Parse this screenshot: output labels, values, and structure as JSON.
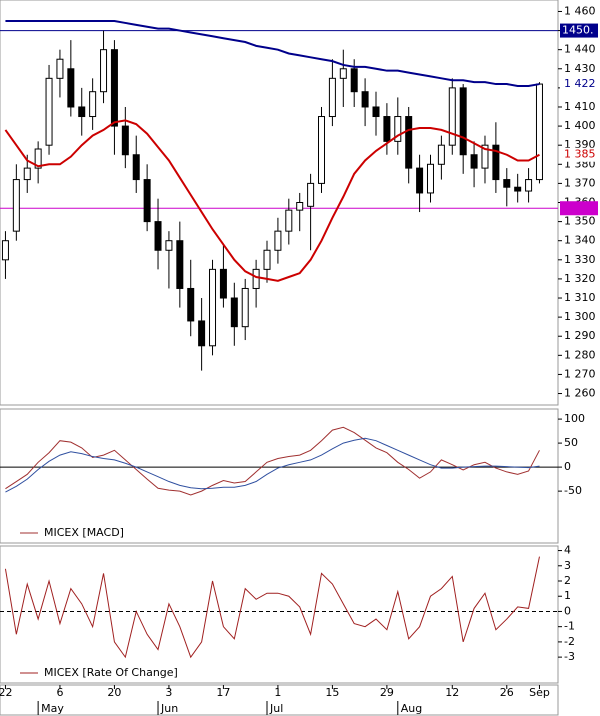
{
  "chart_data": [
    {
      "type": "candlestick",
      "open": [
        1330,
        1345,
        1372,
        1378,
        1390,
        1425,
        1430,
        1410,
        1405,
        1418,
        1440,
        1400,
        1385,
        1372,
        1350,
        1335,
        1340,
        1315,
        1298,
        1285,
        1325,
        1310,
        1295,
        1315,
        1325,
        1335,
        1345,
        1356,
        1358,
        1370,
        1405,
        1425,
        1430,
        1418,
        1410,
        1405,
        1392,
        1405,
        1378,
        1365,
        1380,
        1390,
        1420,
        1385,
        1378,
        1390,
        1372,
        1368,
        1366,
        1372
      ],
      "high": [
        1345,
        1380,
        1385,
        1392,
        1432,
        1440,
        1445,
        1420,
        1425,
        1450,
        1445,
        1410,
        1395,
        1380,
        1362,
        1345,
        1350,
        1330,
        1310,
        1330,
        1338,
        1318,
        1320,
        1330,
        1340,
        1352,
        1362,
        1365,
        1375,
        1410,
        1435,
        1440,
        1435,
        1425,
        1418,
        1412,
        1415,
        1410,
        1385,
        1385,
        1395,
        1425,
        1422,
        1392,
        1395,
        1402,
        1378,
        1375,
        1378,
        1423
      ],
      "low": [
        1320,
        1340,
        1365,
        1370,
        1385,
        1415,
        1405,
        1395,
        1398,
        1412,
        1385,
        1378,
        1365,
        1345,
        1325,
        1315,
        1305,
        1290,
        1272,
        1280,
        1305,
        1285,
        1288,
        1305,
        1318,
        1328,
        1338,
        1345,
        1335,
        1365,
        1400,
        1410,
        1410,
        1400,
        1395,
        1385,
        1385,
        1370,
        1355,
        1360,
        1372,
        1385,
        1375,
        1368,
        1370,
        1365,
        1358,
        1360,
        1360,
        1370
      ],
      "close": [
        1340,
        1372,
        1378,
        1388,
        1425,
        1435,
        1410,
        1405,
        1418,
        1440,
        1400,
        1385,
        1372,
        1350,
        1335,
        1340,
        1315,
        1298,
        1285,
        1325,
        1310,
        1295,
        1315,
        1325,
        1335,
        1345,
        1356,
        1360,
        1370,
        1405,
        1425,
        1430,
        1418,
        1410,
        1405,
        1392,
        1405,
        1378,
        1365,
        1380,
        1390,
        1420,
        1385,
        1378,
        1390,
        1372,
        1368,
        1366,
        1372,
        1422
      ],
      "series": [
        {
          "color": "#00008b",
          "end_label": "1 422",
          "values": [
            1455,
            1455,
            1455,
            1455,
            1455,
            1455,
            1455,
            1455,
            1455,
            1455,
            1455,
            1454,
            1453,
            1452,
            1451,
            1451,
            1450,
            1449,
            1448,
            1447,
            1446,
            1445,
            1444,
            1442,
            1441,
            1440,
            1438,
            1437,
            1436,
            1435,
            1434,
            1432,
            1431,
            1431,
            1430,
            1429,
            1429,
            1428,
            1427,
            1426,
            1425,
            1424,
            1424,
            1423,
            1423,
            1422,
            1422,
            1421,
            1421,
            1422
          ]
        },
        {
          "color": "#cc0000",
          "end_label": "1 385",
          "values": [
            1398,
            1390,
            1382,
            1379,
            1380,
            1380,
            1384,
            1390,
            1395,
            1398,
            1402,
            1403,
            1401,
            1396,
            1389,
            1382,
            1373,
            1364,
            1355,
            1346,
            1338,
            1330,
            1324,
            1321,
            1320,
            1319,
            1321,
            1323,
            1330,
            1340,
            1352,
            1363,
            1375,
            1382,
            1387,
            1391,
            1395,
            1398,
            1399,
            1399,
            1398,
            1396,
            1394,
            1391,
            1388,
            1387,
            1385,
            1382,
            1382,
            1385
          ]
        }
      ],
      "hlines": [
        {
          "value": 1450,
          "label": "1450.",
          "color": "#00008b"
        },
        {
          "value": 1357,
          "color": "#cc00cc"
        }
      ],
      "ylim": [
        1254,
        1466
      ],
      "yticks": [
        {
          "value": 1460,
          "label": "1 460"
        },
        {
          "value": 1450,
          "label": "1 450"
        },
        {
          "value": 1440,
          "label": "1 440"
        },
        {
          "value": 1430,
          "label": "1 430"
        },
        {
          "value": 1420,
          "label": "1 420"
        },
        {
          "value": 1410,
          "label": "1 410"
        },
        {
          "value": 1400,
          "label": "1 400"
        },
        {
          "value": 1390,
          "label": "1 390"
        },
        {
          "value": 1380,
          "label": "1 380"
        },
        {
          "value": 1370,
          "label": "1 370"
        },
        {
          "value": 1360,
          "label": "1 360"
        },
        {
          "value": 1350,
          "label": "1 350"
        },
        {
          "value": 1340,
          "label": "1 340"
        },
        {
          "value": 1330,
          "label": "1 330"
        },
        {
          "value": 1320,
          "label": "1 320"
        },
        {
          "value": 1310,
          "label": "1 310"
        },
        {
          "value": 1300,
          "label": "1 300"
        },
        {
          "value": 1290,
          "label": "1 290"
        },
        {
          "value": 1280,
          "label": "1 280"
        },
        {
          "value": 1270,
          "label": "1 270"
        },
        {
          "value": 1260,
          "label": "1 260"
        }
      ]
    },
    {
      "type": "line",
      "series": [
        {
          "name": "MICEX [MACD]",
          "color": "#a03030",
          "values": [
            -45,
            -30,
            -15,
            10,
            30,
            55,
            52,
            40,
            20,
            25,
            35,
            15,
            -5,
            -25,
            -44,
            -48,
            -50,
            -58,
            -50,
            -38,
            -28,
            -33,
            -30,
            -10,
            10,
            18,
            22,
            25,
            35,
            55,
            77,
            83,
            72,
            56,
            40,
            30,
            10,
            -5,
            -23,
            -10,
            15,
            5,
            -6,
            5,
            10,
            -2,
            -10,
            -15,
            -8,
            35
          ]
        },
        {
          "color": "#3050a0",
          "values": [
            -52,
            -40,
            -25,
            -5,
            12,
            25,
            32,
            28,
            22,
            18,
            15,
            8,
            0,
            -10,
            -20,
            -30,
            -38,
            -43,
            -45,
            -44,
            -42,
            -42,
            -38,
            -30,
            -15,
            -2,
            5,
            10,
            15,
            25,
            38,
            50,
            56,
            60,
            55,
            45,
            35,
            25,
            15,
            5,
            -2,
            -2,
            0,
            1,
            2,
            2,
            1,
            0,
            -1,
            2
          ]
        }
      ],
      "ylim": [
        -158,
        121
      ],
      "yticks": [
        100,
        50,
        0,
        -50
      ]
    },
    {
      "type": "line",
      "series": [
        {
          "name": "MICEX [Rate Of Change]",
          "color": "#a02020",
          "values": [
            2.8,
            -1.5,
            1.8,
            -0.5,
            2,
            -0.8,
            1.5,
            0.5,
            -1,
            2.5,
            -2,
            -3,
            0,
            -1.5,
            -2.5,
            0.5,
            -1,
            -3,
            -2,
            2,
            -1,
            -1.8,
            1.5,
            0.8,
            1.2,
            1.2,
            1,
            0.3,
            -1.5,
            2.5,
            1.8,
            0.5,
            -0.8,
            -1,
            -0.5,
            -1.2,
            1.3,
            -1.8,
            -1,
            1,
            1.5,
            2.3,
            -2,
            0.2,
            1.2,
            -1.2,
            -0.5,
            0.3,
            0.2,
            3.6
          ]
        }
      ],
      "ylim": [
        -4.7,
        4.3
      ],
      "yticks": [
        4,
        3,
        2,
        1,
        0,
        -1,
        -2,
        -3
      ],
      "xlim": [
        -0.5,
        50.7
      ],
      "xticks": [
        {
          "value": 0,
          "label": "22"
        },
        {
          "value": 5,
          "label": "6"
        },
        {
          "value": 10,
          "label": "20"
        },
        {
          "value": 15,
          "label": "3"
        },
        {
          "value": 20,
          "label": "17"
        },
        {
          "value": 25,
          "label": "1"
        },
        {
          "value": 30,
          "label": "15"
        },
        {
          "value": 35,
          "label": "29"
        },
        {
          "value": 41,
          "label": "12"
        },
        {
          "value": 46,
          "label": "26"
        },
        {
          "value": 49,
          "label": "Sep"
        }
      ],
      "months": [
        {
          "value": 3,
          "label": "May"
        },
        {
          "value": 14,
          "label": "Jun"
        },
        {
          "value": 24,
          "label": "Jul"
        },
        {
          "value": 36,
          "label": "Aug"
        }
      ]
    }
  ]
}
